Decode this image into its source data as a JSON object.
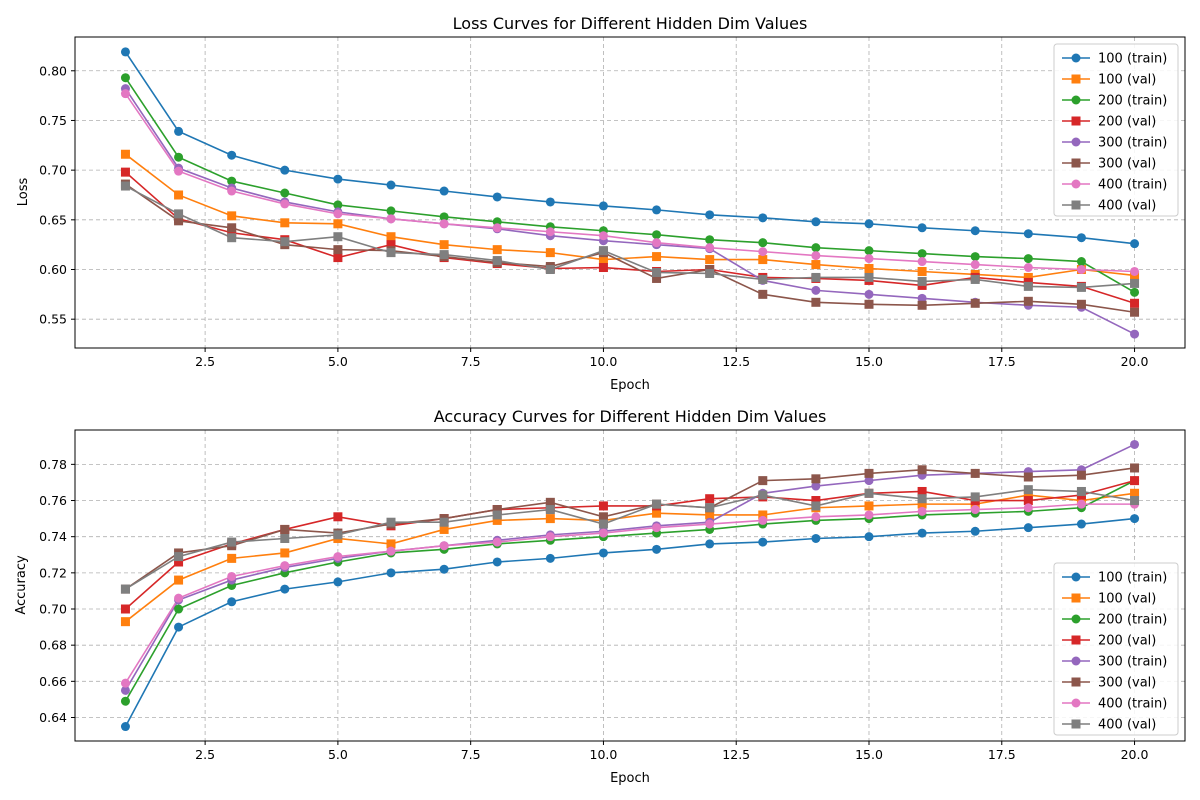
{
  "chart_data": [
    {
      "type": "line",
      "title": "Loss Curves for Different Hidden Dim Values",
      "xlabel": "Epoch",
      "ylabel": "Loss",
      "xlim": [
        0.05,
        20.95
      ],
      "ylim": [
        0.521,
        0.834
      ],
      "xticks": [
        2.5,
        5.0,
        7.5,
        10.0,
        12.5,
        15.0,
        17.5,
        20.0
      ],
      "xtick_labels": [
        "2.5",
        "5.0",
        "7.5",
        "10.0",
        "12.5",
        "15.0",
        "17.5",
        "20.0"
      ],
      "yticks": [
        0.55,
        0.6,
        0.65,
        0.7,
        0.75,
        0.8
      ],
      "ytick_labels": [
        "0.55",
        "0.60",
        "0.65",
        "0.70",
        "0.75",
        "0.80"
      ],
      "grid": true,
      "legend_position": "upper right",
      "x": [
        1,
        2,
        3,
        4,
        5,
        6,
        7,
        8,
        9,
        10,
        11,
        12,
        13,
        14,
        15,
        16,
        17,
        18,
        19,
        20
      ],
      "series": [
        {
          "name": "100 (train)",
          "color": "#1f77b4",
          "marker": "circle",
          "values": [
            0.819,
            0.739,
            0.715,
            0.7,
            0.691,
            0.685,
            0.679,
            0.673,
            0.668,
            0.664,
            0.66,
            0.655,
            0.652,
            0.648,
            0.646,
            0.642,
            0.639,
            0.636,
            0.632,
            0.626
          ]
        },
        {
          "name": "100 (val)",
          "color": "#ff7f0e",
          "marker": "square",
          "values": [
            0.716,
            0.675,
            0.654,
            0.647,
            0.646,
            0.633,
            0.625,
            0.62,
            0.617,
            0.61,
            0.613,
            0.61,
            0.61,
            0.605,
            0.601,
            0.598,
            0.595,
            0.592,
            0.6,
            0.594
          ]
        },
        {
          "name": "200 (train)",
          "color": "#2ca02c",
          "marker": "circle",
          "values": [
            0.793,
            0.713,
            0.689,
            0.677,
            0.665,
            0.659,
            0.653,
            0.648,
            0.643,
            0.639,
            0.635,
            0.63,
            0.627,
            0.622,
            0.619,
            0.616,
            0.613,
            0.611,
            0.608,
            0.577
          ]
        },
        {
          "name": "200 (val)",
          "color": "#d62728",
          "marker": "square",
          "values": [
            0.698,
            0.651,
            0.637,
            0.63,
            0.612,
            0.625,
            0.612,
            0.606,
            0.601,
            0.602,
            0.598,
            0.6,
            0.592,
            0.591,
            0.589,
            0.584,
            0.592,
            0.587,
            0.583,
            0.566
          ]
        },
        {
          "name": "300 (train)",
          "color": "#9467bd",
          "marker": "circle",
          "values": [
            0.782,
            0.702,
            0.682,
            0.668,
            0.658,
            0.651,
            0.646,
            0.641,
            0.634,
            0.629,
            0.625,
            0.621,
            0.589,
            0.579,
            0.575,
            0.571,
            0.567,
            0.564,
            0.562,
            0.535
          ]
        },
        {
          "name": "300 (val)",
          "color": "#8c564b",
          "marker": "square",
          "values": [
            0.686,
            0.649,
            0.642,
            0.625,
            0.62,
            0.619,
            0.613,
            0.607,
            0.603,
            0.617,
            0.591,
            0.6,
            0.575,
            0.567,
            0.565,
            0.564,
            0.566,
            0.568,
            0.565,
            0.557
          ]
        },
        {
          "name": "400 (train)",
          "color": "#e377c2",
          "marker": "circle",
          "values": [
            0.777,
            0.699,
            0.679,
            0.666,
            0.656,
            0.651,
            0.646,
            0.642,
            0.638,
            0.634,
            0.627,
            0.622,
            0.618,
            0.614,
            0.611,
            0.608,
            0.605,
            0.602,
            0.6,
            0.598
          ]
        },
        {
          "name": "400 (val)",
          "color": "#7f7f7f",
          "marker": "square",
          "values": [
            0.684,
            0.656,
            0.632,
            0.628,
            0.633,
            0.617,
            0.615,
            0.609,
            0.6,
            0.619,
            0.597,
            0.596,
            0.59,
            0.592,
            0.592,
            0.588,
            0.59,
            0.583,
            0.582,
            0.586
          ]
        }
      ]
    },
    {
      "type": "line",
      "title": "Accuracy Curves for Different Hidden Dim Values",
      "xlabel": "Epoch",
      "ylabel": "Accuracy",
      "xlim": [
        0.05,
        20.95
      ],
      "ylim": [
        0.627,
        0.799
      ],
      "xticks": [
        2.5,
        5.0,
        7.5,
        10.0,
        12.5,
        15.0,
        17.5,
        20.0
      ],
      "xtick_labels": [
        "2.5",
        "5.0",
        "7.5",
        "10.0",
        "12.5",
        "15.0",
        "17.5",
        "20.0"
      ],
      "yticks": [
        0.64,
        0.66,
        0.68,
        0.7,
        0.72,
        0.74,
        0.76,
        0.78
      ],
      "ytick_labels": [
        "0.64",
        "0.66",
        "0.68",
        "0.70",
        "0.72",
        "0.74",
        "0.76",
        "0.78"
      ],
      "grid": true,
      "legend_position": "lower right",
      "x": [
        1,
        2,
        3,
        4,
        5,
        6,
        7,
        8,
        9,
        10,
        11,
        12,
        13,
        14,
        15,
        16,
        17,
        18,
        19,
        20
      ],
      "series": [
        {
          "name": "100 (train)",
          "color": "#1f77b4",
          "marker": "circle",
          "values": [
            0.635,
            0.69,
            0.704,
            0.711,
            0.715,
            0.72,
            0.722,
            0.726,
            0.728,
            0.731,
            0.733,
            0.736,
            0.737,
            0.739,
            0.74,
            0.742,
            0.743,
            0.745,
            0.747,
            0.75
          ]
        },
        {
          "name": "100 (val)",
          "color": "#ff7f0e",
          "marker": "square",
          "values": [
            0.693,
            0.716,
            0.728,
            0.731,
            0.739,
            0.736,
            0.744,
            0.749,
            0.75,
            0.749,
            0.753,
            0.752,
            0.752,
            0.756,
            0.757,
            0.758,
            0.758,
            0.763,
            0.76,
            0.764
          ]
        },
        {
          "name": "200 (train)",
          "color": "#2ca02c",
          "marker": "circle",
          "values": [
            0.649,
            0.7,
            0.713,
            0.72,
            0.726,
            0.731,
            0.733,
            0.736,
            0.738,
            0.74,
            0.742,
            0.744,
            0.747,
            0.749,
            0.75,
            0.752,
            0.753,
            0.754,
            0.756,
            0.771
          ]
        },
        {
          "name": "200 (val)",
          "color": "#d62728",
          "marker": "square",
          "values": [
            0.7,
            0.726,
            0.736,
            0.744,
            0.751,
            0.746,
            0.75,
            0.755,
            0.756,
            0.757,
            0.757,
            0.761,
            0.762,
            0.76,
            0.764,
            0.765,
            0.76,
            0.76,
            0.763,
            0.771
          ]
        },
        {
          "name": "300 (train)",
          "color": "#9467bd",
          "marker": "circle",
          "values": [
            0.655,
            0.705,
            0.716,
            0.723,
            0.728,
            0.732,
            0.735,
            0.738,
            0.741,
            0.743,
            0.746,
            0.748,
            0.764,
            0.768,
            0.771,
            0.774,
            0.775,
            0.776,
            0.777,
            0.791
          ]
        },
        {
          "name": "300 (val)",
          "color": "#8c564b",
          "marker": "square",
          "values": [
            0.711,
            0.731,
            0.735,
            0.744,
            0.742,
            0.747,
            0.75,
            0.755,
            0.759,
            0.751,
            0.758,
            0.756,
            0.771,
            0.772,
            0.775,
            0.777,
            0.775,
            0.773,
            0.774,
            0.778
          ]
        },
        {
          "name": "400 (train)",
          "color": "#e377c2",
          "marker": "circle",
          "values": [
            0.659,
            0.706,
            0.718,
            0.724,
            0.729,
            0.732,
            0.735,
            0.737,
            0.74,
            0.742,
            0.745,
            0.747,
            0.749,
            0.751,
            0.752,
            0.754,
            0.755,
            0.756,
            0.758,
            0.758
          ]
        },
        {
          "name": "400 (val)",
          "color": "#7f7f7f",
          "marker": "square",
          "values": [
            0.711,
            0.729,
            0.737,
            0.739,
            0.741,
            0.748,
            0.748,
            0.752,
            0.755,
            0.747,
            0.758,
            0.756,
            0.763,
            0.757,
            0.764,
            0.761,
            0.762,
            0.766,
            0.765,
            0.76
          ]
        }
      ]
    }
  ]
}
